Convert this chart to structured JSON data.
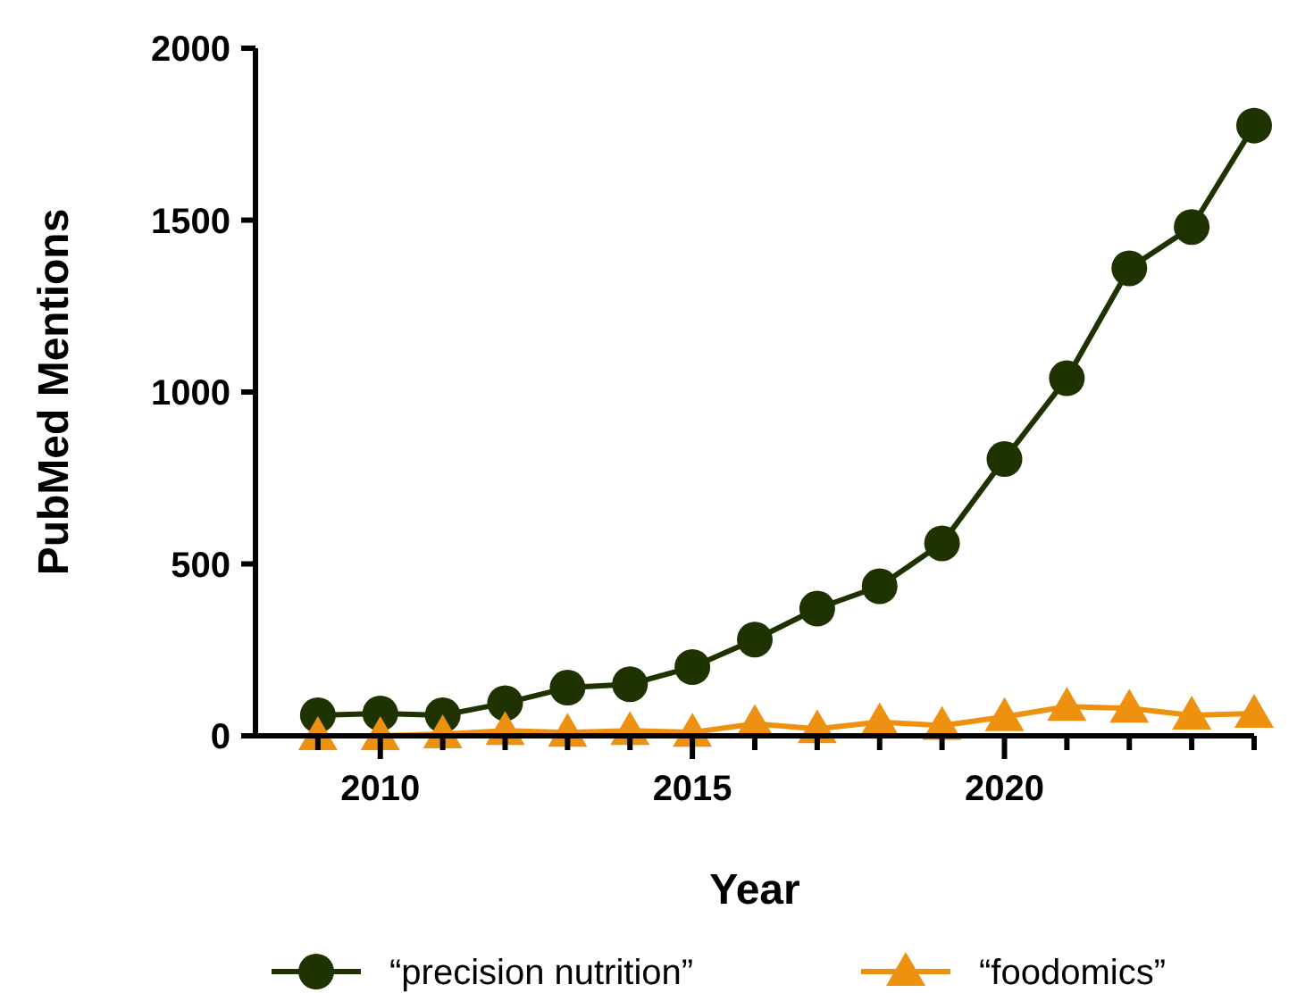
{
  "chart_data": {
    "type": "line",
    "xlabel": "Year",
    "ylabel": "PubMed Mentions",
    "x": [
      2009,
      2010,
      2011,
      2012,
      2013,
      2014,
      2015,
      2016,
      2017,
      2018,
      2019,
      2020,
      2021,
      2022,
      2023,
      2024
    ],
    "series": [
      {
        "name": "“precision nutrition”",
        "color": "#1f3300",
        "marker": "circle",
        "values": [
          60,
          65,
          60,
          95,
          140,
          150,
          200,
          280,
          370,
          435,
          560,
          805,
          1040,
          1360,
          1480,
          1775
        ]
      },
      {
        "name": "“foodomics”",
        "color": "#ee9110",
        "marker": "triangle",
        "values": [
          0,
          0,
          5,
          15,
          10,
          15,
          10,
          35,
          20,
          40,
          30,
          55,
          85,
          80,
          60,
          65
        ]
      }
    ],
    "xlim": [
      2008,
      2024
    ],
    "xticks": [
      {
        "value": 2009,
        "label": null
      },
      2010,
      {
        "value": 2011,
        "label": null
      },
      {
        "value": 2012,
        "label": null
      },
      {
        "value": 2013,
        "label": null
      },
      {
        "value": 2014,
        "label": null
      },
      2015,
      {
        "value": 2016,
        "label": null
      },
      {
        "value": 2017,
        "label": null
      },
      {
        "value": 2018,
        "label": null
      },
      {
        "value": 2019,
        "label": null
      },
      2020,
      {
        "value": 2021,
        "label": null
      },
      {
        "value": 2022,
        "label": null
      },
      {
        "value": 2023,
        "label": null
      },
      {
        "value": 2024,
        "label": null
      }
    ],
    "ylim": [
      0,
      2000
    ],
    "yticks": [
      0,
      500,
      1000,
      1500,
      2000
    ],
    "grid": false,
    "legend": "bottom"
  }
}
